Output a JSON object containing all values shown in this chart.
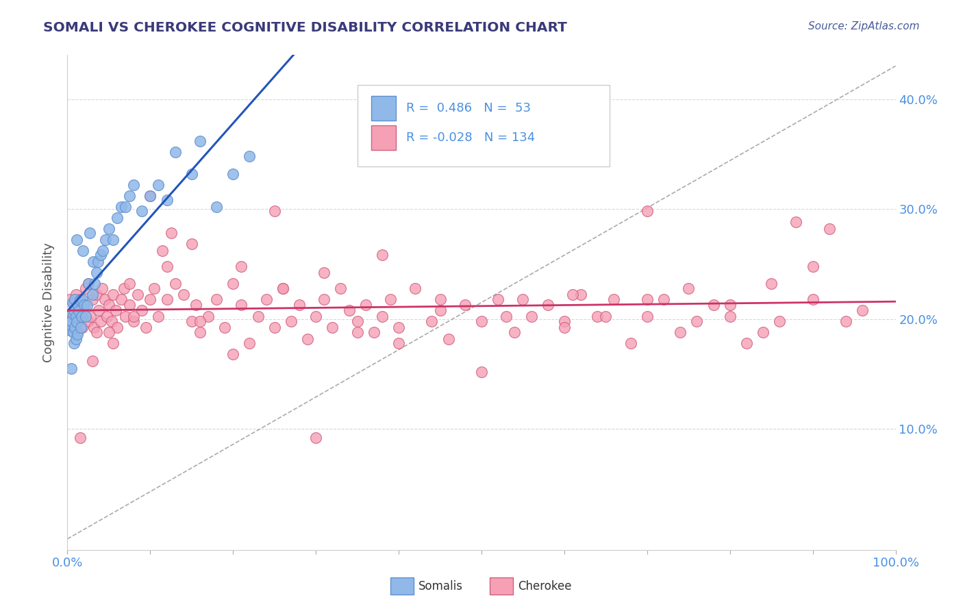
{
  "title": "SOMALI VS CHEROKEE COGNITIVE DISABILITY CORRELATION CHART",
  "source_text": "Source: ZipAtlas.com",
  "ylabel": "Cognitive Disability",
  "xlim": [
    0.0,
    1.0
  ],
  "ylim": [
    -0.01,
    0.44
  ],
  "somali_color": "#90b8e8",
  "somali_edge": "#6090d0",
  "cherokee_color": "#f5a0b5",
  "cherokee_edge": "#d06080",
  "trendline_somali_color": "#2255bb",
  "trendline_cherokee_color": "#cc3366",
  "dashed_line_color": "#aaaaaa",
  "R_somali": 0.486,
  "N_somali": 53,
  "R_cherokee": -0.028,
  "N_cherokee": 134,
  "legend_label_somali": "Somalis",
  "legend_label_cherokee": "Cherokee",
  "title_color": "#3a3a7a",
  "source_color": "#4a5a9a",
  "tick_color": "#4a90e2",
  "ylabel_color": "#555555",
  "grid_color": "#d8d8d8",
  "somali_x": [
    0.003,
    0.004,
    0.005,
    0.006,
    0.007,
    0.007,
    0.008,
    0.008,
    0.009,
    0.009,
    0.01,
    0.01,
    0.011,
    0.011,
    0.012,
    0.013,
    0.014,
    0.015,
    0.016,
    0.017,
    0.018,
    0.019,
    0.02,
    0.022,
    0.024,
    0.025,
    0.027,
    0.03,
    0.031,
    0.033,
    0.035,
    0.037,
    0.04,
    0.043,
    0.046,
    0.05,
    0.055,
    0.06,
    0.065,
    0.07,
    0.075,
    0.08,
    0.09,
    0.1,
    0.11,
    0.12,
    0.13,
    0.15,
    0.16,
    0.18,
    0.2,
    0.22,
    0.005
  ],
  "somali_y": [
    0.19,
    0.195,
    0.198,
    0.215,
    0.188,
    0.205,
    0.178,
    0.208,
    0.192,
    0.218,
    0.182,
    0.202,
    0.197,
    0.272,
    0.186,
    0.212,
    0.207,
    0.217,
    0.192,
    0.202,
    0.218,
    0.262,
    0.213,
    0.202,
    0.212,
    0.232,
    0.278,
    0.222,
    0.252,
    0.232,
    0.242,
    0.252,
    0.258,
    0.262,
    0.272,
    0.282,
    0.272,
    0.292,
    0.302,
    0.302,
    0.312,
    0.322,
    0.298,
    0.312,
    0.322,
    0.308,
    0.352,
    0.332,
    0.362,
    0.302,
    0.332,
    0.348,
    0.155
  ],
  "cherokee_x": [
    0.003,
    0.005,
    0.006,
    0.008,
    0.01,
    0.01,
    0.012,
    0.013,
    0.015,
    0.016,
    0.018,
    0.02,
    0.022,
    0.025,
    0.025,
    0.028,
    0.03,
    0.032,
    0.035,
    0.038,
    0.04,
    0.042,
    0.045,
    0.048,
    0.05,
    0.053,
    0.055,
    0.058,
    0.06,
    0.065,
    0.068,
    0.07,
    0.075,
    0.08,
    0.085,
    0.09,
    0.095,
    0.1,
    0.105,
    0.11,
    0.115,
    0.12,
    0.125,
    0.13,
    0.14,
    0.15,
    0.155,
    0.16,
    0.17,
    0.18,
    0.19,
    0.2,
    0.21,
    0.22,
    0.23,
    0.24,
    0.25,
    0.26,
    0.27,
    0.28,
    0.29,
    0.3,
    0.31,
    0.32,
    0.33,
    0.34,
    0.35,
    0.36,
    0.37,
    0.38,
    0.39,
    0.4,
    0.42,
    0.44,
    0.46,
    0.48,
    0.5,
    0.52,
    0.54,
    0.56,
    0.58,
    0.6,
    0.62,
    0.64,
    0.66,
    0.68,
    0.7,
    0.72,
    0.74,
    0.76,
    0.78,
    0.8,
    0.82,
    0.84,
    0.86,
    0.88,
    0.9,
    0.92,
    0.94,
    0.96,
    0.03,
    0.05,
    0.075,
    0.1,
    0.15,
    0.2,
    0.25,
    0.3,
    0.35,
    0.4,
    0.45,
    0.5,
    0.55,
    0.6,
    0.65,
    0.7,
    0.75,
    0.8,
    0.85,
    0.9,
    0.015,
    0.035,
    0.055,
    0.08,
    0.12,
    0.16,
    0.21,
    0.26,
    0.31,
    0.38,
    0.45,
    0.53,
    0.61,
    0.7
  ],
  "cherokee_y": [
    0.218,
    0.192,
    0.202,
    0.213,
    0.198,
    0.222,
    0.188,
    0.208,
    0.218,
    0.202,
    0.192,
    0.213,
    0.228,
    0.198,
    0.232,
    0.202,
    0.218,
    0.192,
    0.222,
    0.208,
    0.198,
    0.228,
    0.218,
    0.202,
    0.213,
    0.198,
    0.222,
    0.208,
    0.192,
    0.218,
    0.228,
    0.202,
    0.213,
    0.198,
    0.222,
    0.208,
    0.192,
    0.218,
    0.228,
    0.202,
    0.262,
    0.248,
    0.278,
    0.232,
    0.222,
    0.198,
    0.213,
    0.188,
    0.202,
    0.218,
    0.192,
    0.232,
    0.248,
    0.178,
    0.202,
    0.218,
    0.192,
    0.228,
    0.198,
    0.213,
    0.182,
    0.202,
    0.218,
    0.192,
    0.228,
    0.208,
    0.198,
    0.213,
    0.188,
    0.202,
    0.218,
    0.192,
    0.228,
    0.198,
    0.182,
    0.213,
    0.198,
    0.218,
    0.188,
    0.202,
    0.213,
    0.198,
    0.222,
    0.202,
    0.218,
    0.178,
    0.202,
    0.218,
    0.188,
    0.198,
    0.213,
    0.202,
    0.178,
    0.188,
    0.198,
    0.288,
    0.218,
    0.282,
    0.198,
    0.208,
    0.162,
    0.188,
    0.232,
    0.312,
    0.268,
    0.168,
    0.298,
    0.092,
    0.188,
    0.178,
    0.208,
    0.152,
    0.218,
    0.192,
    0.202,
    0.298,
    0.228,
    0.213,
    0.232,
    0.248,
    0.092,
    0.188,
    0.178,
    0.202,
    0.218,
    0.198,
    0.213,
    0.228,
    0.242,
    0.258,
    0.218,
    0.202,
    0.222,
    0.218
  ]
}
